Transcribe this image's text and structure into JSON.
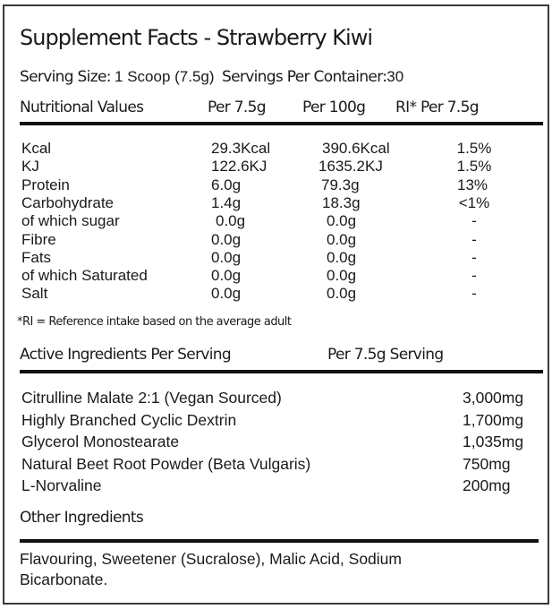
{
  "title": "Supplement Facts - Strawberry Kiwi",
  "serving": {
    "size_label": "Serving Size:",
    "size_value": "1 Scoop (7.5g)",
    "per_container_label": "Servings Per Container:",
    "per_container_value": "30"
  },
  "nutrition": {
    "headers": [
      "Nutritional Values",
      "Per 7.5g",
      "Per 100g",
      "RI* Per 7.5g"
    ],
    "rows": [
      [
        "Kcal",
        "29.3Kcal",
        "390.6Kcal",
        "1.5%"
      ],
      [
        "KJ",
        "122.6KJ",
        "1635.2KJ",
        "1.5%"
      ],
      [
        "Protein",
        "6.0g",
        "79.3g",
        "13%"
      ],
      [
        "Carbohydrate",
        "1.4g",
        "18.3g",
        "<1%"
      ],
      [
        "of which sugar",
        "0.0g",
        "0.0g",
        "-"
      ],
      [
        "Fibre",
        "0.0g",
        "0.0g",
        "-"
      ],
      [
        "Fats",
        "0.0g",
        "0.0g",
        "-"
      ],
      [
        "of which Saturated",
        "0.0g",
        "0.0g",
        "-"
      ],
      [
        "Salt",
        "0.0g",
        "0.0g",
        "-"
      ]
    ],
    "footnote": "*RI = Reference intake based on the average adult"
  },
  "active": {
    "headers": [
      "Active Ingredients Per Serving",
      "Per 7.5g Serving"
    ],
    "rows": [
      [
        "Citrulline Malate 2:1 (Vegan Sourced)",
        "3,000mg"
      ],
      [
        "Highly Branched Cyclic Dextrin",
        "1,700mg"
      ],
      [
        "Glycerol Monostearate",
        "1,035mg"
      ],
      [
        "Natural Beet Root Powder (Beta Vulgaris)",
        "750mg"
      ],
      [
        "L-Norvaline",
        "200mg"
      ]
    ]
  },
  "other": {
    "heading": "Other Ingredients",
    "lines": [
      "Flavouring, Sweetener (Sucralose), Malic Acid, Sodium",
      "Bicarbonate."
    ]
  }
}
